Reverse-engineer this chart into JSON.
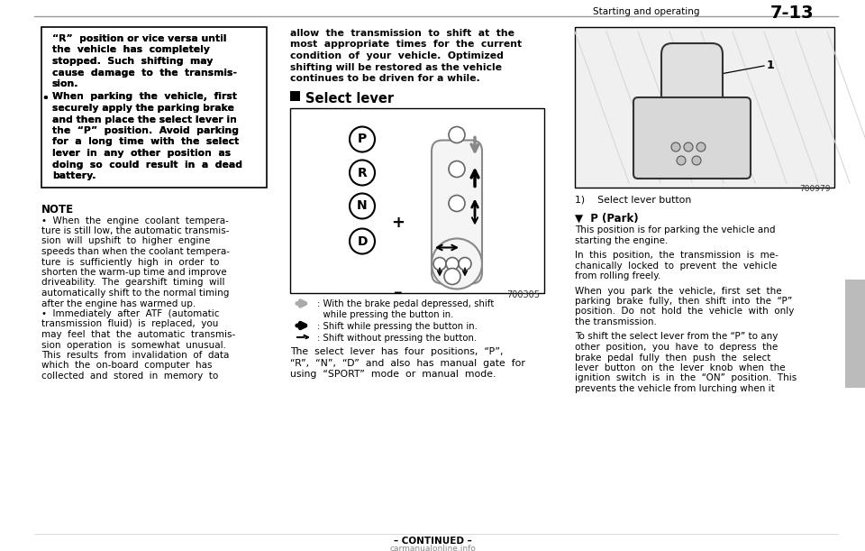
{
  "bg_color": "#ffffff",
  "page_width": 9.6,
  "page_height": 6.11,
  "header_text": "Starting and operating",
  "header_page": "7-13",
  "footer_text": "carmanualonline.info",
  "footer_continued": "– CONTINUED –",
  "col1_box_lines": [
    "“R”  position or vice versa until",
    "the  vehicle  has  completely",
    "stopped.  Such  shifting  may",
    "cause  damage  to  the  transmis-",
    "sion."
  ],
  "col1_bullet_lines": [
    "When  parking  the  vehicle,  first",
    "securely apply the parking brake",
    "and then place the select lever in",
    "the  “P”  position.  Avoid  parking",
    "for  a  long  time  with  the  select",
    "lever  in  any  other  position  as",
    "doing  so  could  result  in  a  dead",
    "battery."
  ],
  "note_title": "NOTE",
  "note_lines": [
    "•  When  the  engine  coolant  tempera-",
    "ture is still low, the automatic transmis-",
    "sion  will  upshift  to  higher  engine",
    "speeds than when the coolant tempera-",
    "ture  is  sufficiently  high  in  order  to",
    "shorten the warm-up time and improve",
    "driveability.  The  gearshift  timing  will",
    "automatically shift to the normal timing",
    "after the engine has warmed up.",
    "•  Immediately  after  ATF  (automatic",
    "transmission  fluid)  is  replaced,  you",
    "may  feel  that  the  automatic  transmis-",
    "sion  operation  is  somewhat  unusual.",
    "This  results  from  invalidation  of  data",
    "which  the  on-board  computer  has",
    "collected  and  stored  in  memory  to"
  ],
  "col2_intro_lines": [
    "allow  the  transmission  to  shift  at  the",
    "most  appropriate  times  for  the  current",
    "condition  of  your  vehicle.  Optimized",
    "shifting will be restored as the vehicle",
    "continues to be driven for a while."
  ],
  "diagram_code": "700305",
  "legend_lines": [
    ": With the brake pedal depressed, shift",
    "  while pressing the button in.",
    ": Shift while pressing the button in.",
    ": Shift without pressing the button."
  ],
  "col2_bottom_lines": [
    "The  select  lever  has  four  positions,  “P”,",
    "“R”,  “N”,  “D”  and  also  has  manual  gate  for",
    "using  “SPORT”  mode  or  manual  mode."
  ],
  "photo_code": "700979",
  "photo_caption": "1)    Select lever button",
  "park_title": "▼  P (Park)",
  "park_lines": [
    "This position is for parking the vehicle and",
    "starting the engine.",
    "",
    "In  this  position,  the  transmission  is  me-",
    "chanically  locked  to  prevent  the  vehicle",
    "from rolling freely.",
    "",
    "When  you  park  the  vehicle,  first  set  the",
    "parking  brake  fully,  then  shift  into  the  “P”",
    "position.  Do  not  hold  the  vehicle  with  only",
    "the transmission.",
    "",
    "To shift the select lever from the “P” to any",
    "other  position,  you  have  to  depress  the",
    "brake  pedal  fully  then  push  the  select",
    "lever  button  on  the  lever  knob  when  the",
    "ignition  switch  is  in  the  “ON”  position.  This",
    "prevents the vehicle from lurching when it"
  ],
  "sidebar_color": "#bbbbbb"
}
